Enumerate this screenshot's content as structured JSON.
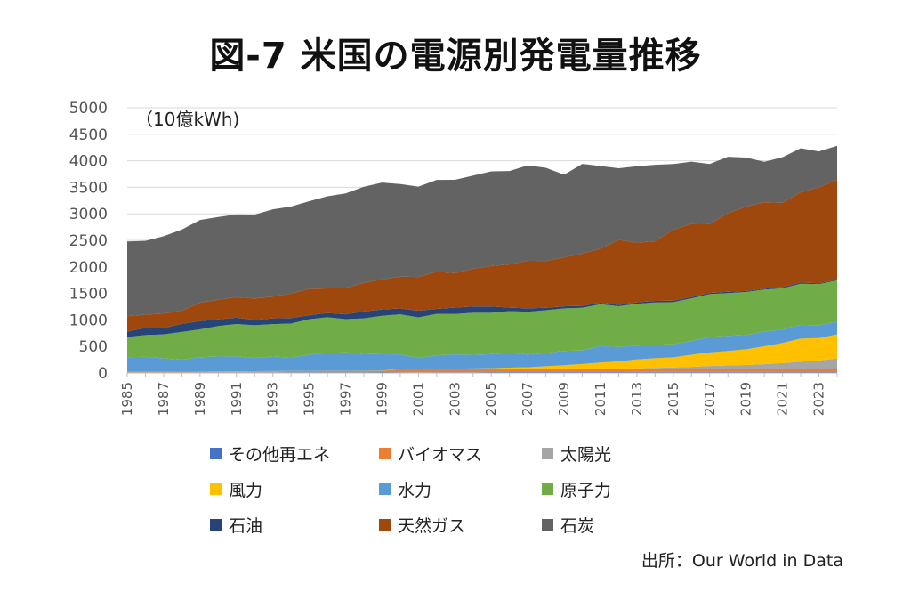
{
  "title": "図-7 米国の電源別発電量推移",
  "source": "出所：Our World in Data",
  "chart_data": {
    "type": "area",
    "stacked": true,
    "unit": "（10億kWh)",
    "ylim": [
      0,
      5000
    ],
    "yticks": [
      0,
      500,
      1000,
      1500,
      2000,
      2500,
      3000,
      3500,
      4000,
      4500,
      5000
    ],
    "grid": true,
    "legend_position": "bottom",
    "x": [
      1985,
      1986,
      1987,
      1988,
      1989,
      1990,
      1991,
      1992,
      1993,
      1994,
      1995,
      1996,
      1997,
      1998,
      1999,
      2000,
      2001,
      2002,
      2003,
      2004,
      2005,
      2006,
      2007,
      2008,
      2009,
      2010,
      2011,
      2012,
      2013,
      2014,
      2015,
      2016,
      2017,
      2018,
      2019,
      2020,
      2021,
      2022,
      2023,
      2024
    ],
    "xtick_labels": [
      "1985",
      "1987",
      "1989",
      "1991",
      "1993",
      "1995",
      "1997",
      "1999",
      "2001",
      "2003",
      "2005",
      "2007",
      "2009",
      "2011",
      "2013",
      "2015",
      "2017",
      "2019",
      "2021",
      "2023"
    ],
    "series": [
      {
        "name": "その他再エネ",
        "color": "#4472c4",
        "values": [
          10,
          10,
          10,
          11,
          12,
          12,
          13,
          13,
          13,
          14,
          14,
          15,
          15,
          15,
          16,
          15,
          13,
          14,
          15,
          15,
          16,
          16,
          16,
          16,
          16,
          17,
          17,
          17,
          18,
          18,
          18,
          18,
          18,
          18,
          18,
          18,
          17,
          17,
          17,
          17
        ]
      },
      {
        "name": "バイオマス",
        "color": "#ed7d31",
        "values": [
          10,
          10,
          11,
          12,
          14,
          16,
          17,
          18,
          19,
          20,
          21,
          22,
          22,
          22,
          23,
          60,
          55,
          55,
          55,
          56,
          56,
          56,
          56,
          56,
          56,
          57,
          58,
          58,
          60,
          62,
          62,
          62,
          62,
          62,
          60,
          58,
          55,
          53,
          52,
          50
        ]
      },
      {
        "name": "太陽光",
        "color": "#a5a5a5",
        "values": [
          0,
          0,
          0,
          0,
          0,
          0,
          0,
          0,
          0,
          0,
          0,
          0,
          0,
          0,
          0,
          0,
          0,
          0,
          0,
          0,
          0,
          1,
          1,
          1,
          1,
          1,
          2,
          4,
          9,
          17,
          25,
          36,
          53,
          63,
          72,
          89,
          115,
          143,
          165,
          210
        ]
      },
      {
        "name": "風力",
        "color": "#ffc000",
        "values": [
          0,
          0,
          1,
          1,
          2,
          3,
          3,
          3,
          3,
          3,
          3,
          3,
          3,
          3,
          4,
          6,
          6,
          10,
          11,
          14,
          18,
          27,
          34,
          55,
          74,
          95,
          120,
          140,
          168,
          182,
          191,
          227,
          254,
          273,
          296,
          338,
          380,
          435,
          425,
          450
        ]
      },
      {
        "name": "水力",
        "color": "#5b9bd5",
        "values": [
          280,
          285,
          255,
          225,
          270,
          280,
          280,
          250,
          275,
          255,
          305,
          340,
          350,
          320,
          310,
          270,
          210,
          255,
          270,
          260,
          265,
          282,
          242,
          250,
          270,
          255,
          310,
          270,
          260,
          255,
          245,
          260,
          295,
          285,
          270,
          280,
          250,
          260,
          240,
          240
        ]
      },
      {
        "name": "原子力",
        "color": "#70ad47",
        "values": [
          380,
          410,
          450,
          525,
          525,
          575,
          610,
          615,
          610,
          640,
          670,
          670,
          625,
          670,
          725,
          755,
          765,
          780,
          760,
          790,
          780,
          785,
          805,
          805,
          800,
          805,
          790,
          770,
          790,
          795,
          795,
          805,
          805,
          805,
          810,
          790,
          780,
          775,
          775,
          780
        ]
      },
      {
        "name": "石油",
        "color": "#264478",
        "values": [
          100,
          135,
          120,
          150,
          155,
          125,
          120,
          100,
          110,
          105,
          75,
          80,
          90,
          130,
          120,
          110,
          125,
          95,
          120,
          120,
          120,
          65,
          65,
          45,
          40,
          35,
          30,
          25,
          27,
          30,
          28,
          24,
          21,
          25,
          19,
          17,
          19,
          23,
          16,
          15
        ]
      },
      {
        "name": "天然ガス",
        "color": "#9e480e",
        "values": [
          290,
          250,
          270,
          250,
          345,
          370,
          385,
          405,
          410,
          460,
          500,
          465,
          495,
          540,
          565,
          600,
          635,
          700,
          650,
          710,
          760,
          815,
          895,
          885,
          920,
          985,
          1015,
          1225,
          1125,
          1125,
          1335,
          1380,
          1300,
          1480,
          1590,
          1630,
          1590,
          1700,
          1810,
          1880
        ]
      },
      {
        "name": "石炭",
        "color": "#636363",
        "values": [
          1410,
          1390,
          1460,
          1530,
          1560,
          1560,
          1560,
          1580,
          1645,
          1640,
          1650,
          1735,
          1785,
          1810,
          1825,
          1745,
          1705,
          1730,
          1760,
          1755,
          1785,
          1760,
          1800,
          1755,
          1560,
          1690,
          1560,
          1350,
          1440,
          1440,
          1240,
          1170,
          1130,
          1065,
          925,
          760,
          860,
          830,
          675,
          640
        ]
      }
    ]
  }
}
